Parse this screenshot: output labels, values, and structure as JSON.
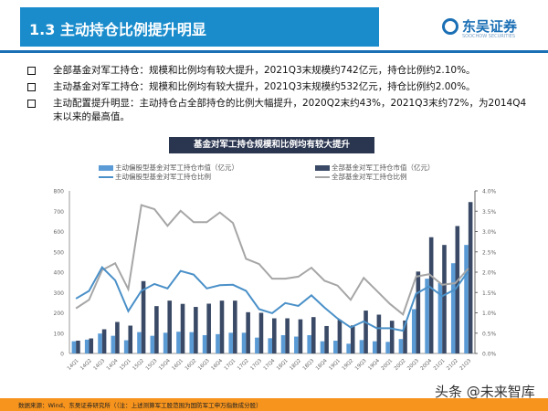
{
  "header": {
    "title": "1.3 主动持仓比例提升明显",
    "logo_text": "东吴证券",
    "logo_sub": "SOOCHOW SECURITIES"
  },
  "bullets": [
    "全部基金对军工持仓：规模和比例均有较大提升，2021Q3末规模约742亿元，持仓比例约2.10%。",
    "主动基金对军工持仓：规模和比例均有较大提升，2021Q3末规模约532亿元，持仓比例约2.00%。",
    "主动配置提升明显：主动持仓占全部持仓的比例大幅提升，2020Q2末约43%，2021Q3末约72%，为2014Q4末以来的最高值。"
  ],
  "chart_data": {
    "type": "bar",
    "title": "基金对军工持仓规模和比例均有较大提升",
    "categories": [
      "14Q1",
      "14Q2",
      "14Q3",
      "14Q4",
      "15Q1",
      "15Q2",
      "15Q3",
      "15Q4",
      "16Q1",
      "16Q2",
      "16Q3",
      "16Q4",
      "17Q1",
      "17Q2",
      "17Q3",
      "17Q4",
      "18Q1",
      "18Q2",
      "18Q3",
      "18Q4",
      "19Q1",
      "19Q2",
      "19Q3",
      "19Q4",
      "20Q1",
      "20Q2",
      "20Q3",
      "20Q4",
      "21Q1",
      "21Q2",
      "21Q3"
    ],
    "series": [
      {
        "name": "主动偏股型基金对军工持仓市值（亿元）",
        "kind": "bar",
        "axis": "left",
        "color": "#5b9bd5",
        "values": [
          60,
          68,
          98,
          87,
          65,
          105,
          87,
          102,
          107,
          105,
          90,
          95,
          102,
          102,
          78,
          75,
          90,
          83,
          90,
          60,
          63,
          48,
          66,
          60,
          57,
          71,
          218,
          368,
          346,
          444,
          534
        ]
      },
      {
        "name": "全部基金对军工持仓市值（亿元）",
        "kind": "bar",
        "axis": "left",
        "color": "#3a4a66",
        "values": [
          63,
          74,
          119,
          155,
          137,
          356,
          233,
          260,
          244,
          229,
          245,
          260,
          260,
          203,
          200,
          173,
          173,
          168,
          179,
          135,
          165,
          138,
          211,
          191,
          161,
          162,
          403,
          572,
          534,
          627,
          745
        ]
      },
      {
        "name": "主动偏股型基金对军工持仓比例",
        "kind": "line",
        "axis": "right",
        "color": "#4a90c8",
        "values": [
          1.35,
          1.54,
          2.12,
          1.8,
          1.04,
          1.54,
          1.71,
          1.6,
          2.03,
          1.94,
          1.6,
          1.68,
          1.69,
          1.54,
          1.09,
          0.99,
          1.24,
          1.17,
          1.43,
          1.13,
          0.86,
          0.64,
          0.79,
          0.62,
          0.62,
          0.56,
          1.47,
          1.65,
          1.41,
          1.58,
          2.03
        ]
      },
      {
        "name": "全部基金对军工持仓比例",
        "kind": "line",
        "axis": "right",
        "color": "#a6a6a6",
        "values": [
          1.11,
          1.32,
          2.05,
          2.22,
          1.58,
          3.65,
          3.55,
          3.14,
          3.51,
          3.23,
          3.23,
          3.47,
          3.21,
          2.33,
          2.2,
          1.84,
          1.84,
          1.89,
          2.11,
          1.79,
          1.67,
          1.32,
          1.86,
          1.54,
          1.22,
          0.96,
          1.89,
          1.95,
          1.69,
          1.73,
          2.09
        ]
      }
    ],
    "yleft": {
      "lim": [
        0,
        800
      ],
      "ticks": [
        "0",
        "100",
        "200",
        "300",
        "400",
        "500",
        "600",
        "700",
        "800"
      ]
    },
    "yright": {
      "lim": [
        0,
        4.0
      ],
      "ticks": [
        "0.0%",
        "0.5%",
        "1.0%",
        "1.5%",
        "2.0%",
        "2.5%",
        "3.0%",
        "3.5%",
        "4.0%"
      ]
    },
    "grid": false,
    "legend": "top"
  },
  "footer": {
    "source": "数据来源：Wind、东吴证券研究所（（注：上述测算军工股范围为国防军工申万指数成分股）"
  },
  "watermark": "头条 @未来智库"
}
